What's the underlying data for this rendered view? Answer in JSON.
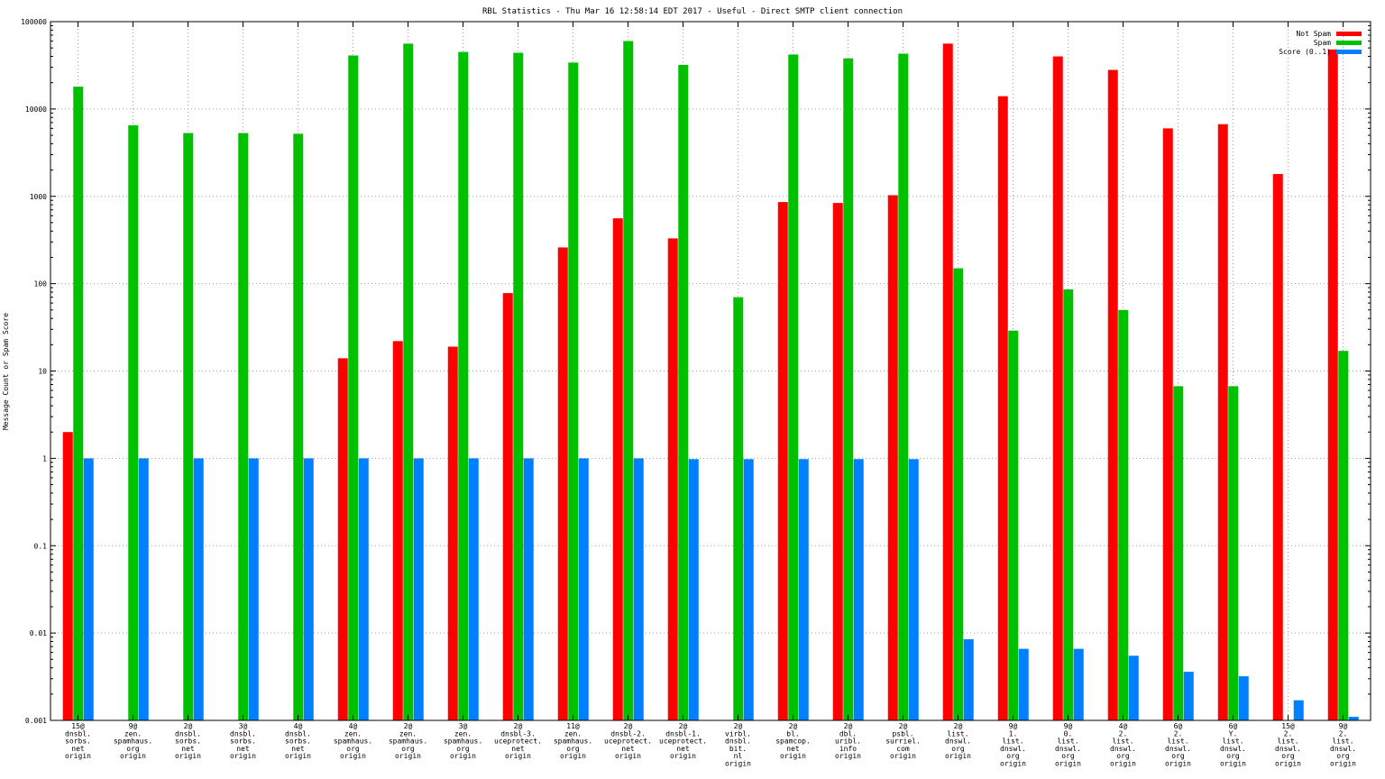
{
  "chart_data": {
    "type": "bar",
    "title": "RBL Statistics - Thu Mar 16 12:58:14 EDT 2017 - Useful - Direct SMTP client connection",
    "ylabel": "Message Count or Spam Score",
    "xlabel": "",
    "yscale": "log",
    "ylim": [
      0.001,
      100000
    ],
    "yticks": [
      "0.001",
      "0.01",
      "0.1",
      "1",
      "10",
      "100",
      "1000",
      "10000",
      "100000"
    ],
    "legend_position": "top-right",
    "grid": true,
    "categories": [
      [
        "15@",
        "dnsbl.",
        "sorbs.",
        "net",
        "origin"
      ],
      [
        "9@",
        "zen.",
        "spamhaus.",
        "org",
        "origin"
      ],
      [
        "2@",
        "dnsbl.",
        "sorbs.",
        "net",
        "origin"
      ],
      [
        "3@",
        "dnsbl.",
        "sorbs.",
        "net",
        "origin"
      ],
      [
        "4@",
        "dnsbl.",
        "sorbs.",
        "net",
        "origin"
      ],
      [
        "4@",
        "zen.",
        "spamhaus.",
        "org",
        "origin"
      ],
      [
        "2@",
        "zen.",
        "spamhaus.",
        "org",
        "origin"
      ],
      [
        "3@",
        "zen.",
        "spamhaus.",
        "org",
        "origin"
      ],
      [
        "2@",
        "dnsbl-3.",
        "uceprotect.",
        "net",
        "origin"
      ],
      [
        "11@",
        "zen.",
        "spamhaus.",
        "org",
        "origin"
      ],
      [
        "2@",
        "dnsbl-2.",
        "uceprotect.",
        "net",
        "origin"
      ],
      [
        "2@",
        "dnsbl-1.",
        "uceprotect.",
        "net",
        "origin"
      ],
      [
        "2@",
        "virbl.",
        "dnsbl.",
        "bit.",
        "nl",
        "origin"
      ],
      [
        "2@",
        "bl.",
        "spamcop.",
        "net",
        "origin"
      ],
      [
        "2@",
        "dbl.",
        "uribl.",
        "info",
        "origin"
      ],
      [
        "2@",
        "psbl.",
        "surriel.",
        "com",
        "origin"
      ],
      [
        "2@",
        "list.",
        "dnswl.",
        "org",
        "origin"
      ],
      [
        "9@",
        "1.",
        "list.",
        "dnswl.",
        "org",
        "origin"
      ],
      [
        "9@",
        "0.",
        "list.",
        "dnswl.",
        "org",
        "origin"
      ],
      [
        "4@",
        "2.",
        "list.",
        "dnswl.",
        "org",
        "origin"
      ],
      [
        "6@",
        "2.",
        "list.",
        "dnswl.",
        "org",
        "origin"
      ],
      [
        "6@",
        "Y.",
        "list.",
        "dnswl.",
        "org",
        "origin"
      ],
      [
        "15@",
        "2.",
        "list.",
        "dnswl.",
        "org",
        "origin"
      ],
      [
        "9@",
        "2.",
        "list.",
        "dnswl.",
        "org",
        "origin"
      ]
    ],
    "series": [
      {
        "name": "Not Spam",
        "color": "#ff0000",
        "values": [
          2,
          null,
          null,
          null,
          null,
          14,
          22,
          19,
          78,
          260,
          560,
          330,
          null,
          860,
          840,
          1030,
          56000,
          14000,
          40000,
          28000,
          6000,
          6700,
          1800,
          48000
        ]
      },
      {
        "name": "Spam",
        "color": "#00c000",
        "values": [
          18000,
          6500,
          5300,
          5300,
          5200,
          41000,
          56000,
          45000,
          44000,
          34000,
          60000,
          32000,
          70,
          42000,
          38000,
          43000,
          150,
          29,
          86,
          50,
          6.7,
          6.7,
          null,
          17
        ]
      },
      {
        "name": "Score (0..1)",
        "color": "#0080ff",
        "values": [
          1,
          1,
          1,
          1,
          1,
          1,
          1,
          1,
          1,
          1,
          1,
          0.98,
          0.98,
          0.98,
          0.98,
          0.98,
          0.0085,
          0.0066,
          0.0066,
          0.0055,
          0.0036,
          0.0032,
          0.0017,
          0.0011
        ]
      }
    ]
  }
}
